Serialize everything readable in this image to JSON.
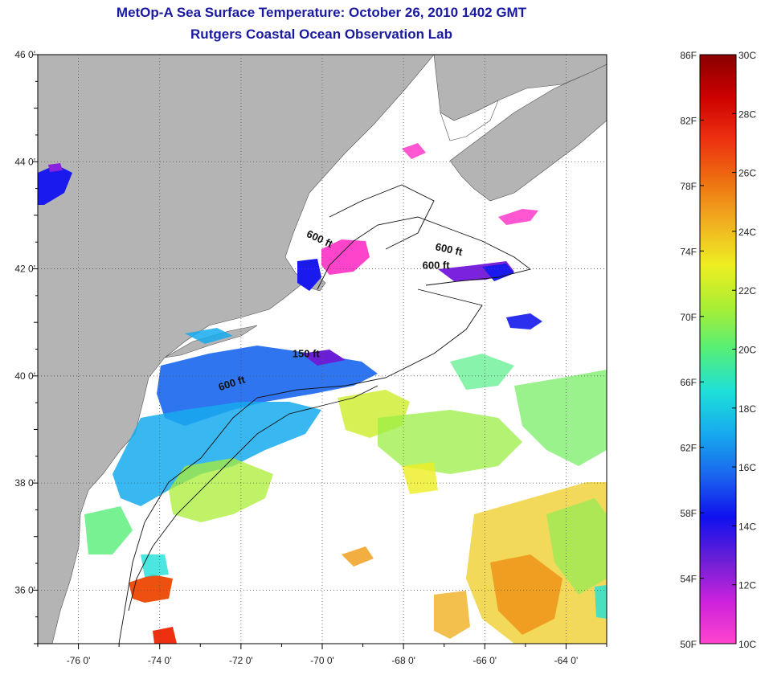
{
  "title": "MetOp-A Sea Surface Temperature:  October 26, 2010 1402 GMT",
  "subtitle": "Rutgers Coastal Ocean Observation Lab",
  "map": {
    "lon_range": [
      -77,
      -63
    ],
    "lat_range": [
      35,
      46
    ],
    "lon_ticks": [
      {
        "v": -76,
        "label": "-76 0'"
      },
      {
        "v": -74,
        "label": "-74 0'"
      },
      {
        "v": -72,
        "label": "-72 0'"
      },
      {
        "v": -70,
        "label": "-70 0'"
      },
      {
        "v": -68,
        "label": "-68 0'"
      },
      {
        "v": -66,
        "label": "-66 0'"
      },
      {
        "v": -64,
        "label": "-64 0'"
      }
    ],
    "lat_ticks": [
      {
        "v": 36,
        "label": "36 0'"
      },
      {
        "v": 38,
        "label": "38 0'"
      },
      {
        "v": 40,
        "label": "40 0'"
      },
      {
        "v": 42,
        "label": "42 0'"
      },
      {
        "v": 44,
        "label": "44 0'"
      },
      {
        "v": 46,
        "label": "46 0'"
      }
    ],
    "grid": "dotted",
    "land_color": "#b4b4b4",
    "contour_labels": [
      {
        "text": "600 ft",
        "lon": -70.1,
        "lat": 42.5,
        "angle": 25
      },
      {
        "text": "600 ft",
        "lon": -66.9,
        "lat": 42.3,
        "angle": 12
      },
      {
        "text": "600 ft",
        "lon": -67.2,
        "lat": 42.0,
        "angle": 0
      },
      {
        "text": "150 ft",
        "lon": -70.4,
        "lat": 40.35,
        "angle": 0
      },
      {
        "text": "600 ft",
        "lon": -72.2,
        "lat": 39.8,
        "angle": -18
      }
    ]
  },
  "colorbar": {
    "min_c": 10,
    "max_c": 30,
    "celsius_labels": [
      "30C",
      "28C",
      "26C",
      "24C",
      "22C",
      "20C",
      "18C",
      "16C",
      "14C",
      "12C",
      "10C"
    ],
    "fahrenheit_labels": [
      "86F",
      "82F",
      "78F",
      "74F",
      "70F",
      "66F",
      "62F",
      "58F",
      "54F",
      "50F"
    ],
    "colors": [
      "#ff44cc",
      "#cc22dd",
      "#6a1fd6",
      "#1010ee",
      "#1a66ee",
      "#16aaee",
      "#1ee0d8",
      "#55ee77",
      "#aaee33",
      "#eeee22",
      "#f0b020",
      "#ee7010",
      "#ee3010",
      "#cc0000",
      "#8a0000"
    ]
  }
}
